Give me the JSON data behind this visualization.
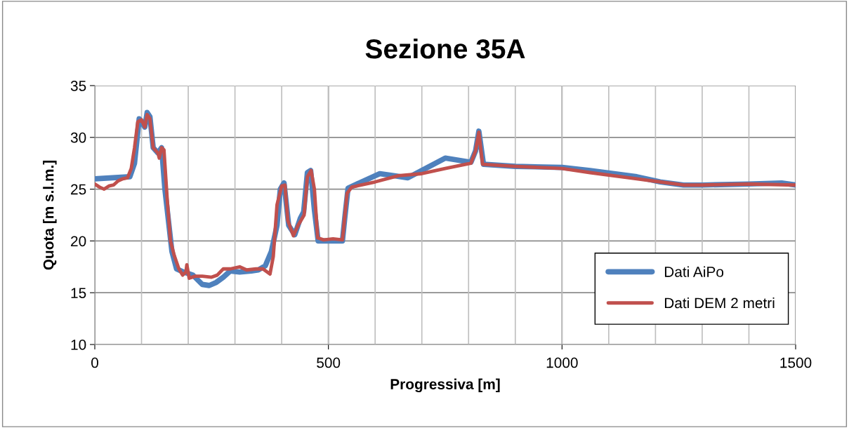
{
  "chart_data": {
    "type": "line",
    "title": "Sezione 35A",
    "xlabel": "Progressiva [m]",
    "ylabel": "Quota [m s.l.m.]",
    "xlim": [
      0,
      1500
    ],
    "xticks": [
      0,
      500,
      1000,
      1500
    ],
    "ylim": [
      10,
      35
    ],
    "yticks": [
      10,
      15,
      20,
      25,
      30,
      35
    ],
    "grid": true,
    "legend": "bottom right",
    "marker": "none",
    "line_style": "solid",
    "series": [
      {
        "name": "Dati AiPo",
        "color": "#4f81bd",
        "x": [
          0,
          75,
          85,
          95,
          107,
          112,
          118,
          125,
          135,
          143,
          150,
          165,
          175,
          190,
          210,
          230,
          245,
          260,
          275,
          290,
          310,
          335,
          350,
          365,
          378,
          390,
          397,
          405,
          415,
          428,
          440,
          447,
          455,
          462,
          470,
          478,
          490,
          500,
          530,
          535,
          542,
          610,
          670,
          750,
          805,
          815,
          822,
          832,
          900,
          1000,
          1060,
          1160,
          1210,
          1260,
          1300,
          1400,
          1470,
          1500
        ],
        "values": [
          26.0,
          26.2,
          27.5,
          31.8,
          31.0,
          32.4,
          32.0,
          29.0,
          28.5,
          29.0,
          25.0,
          19.0,
          17.3,
          17.0,
          16.7,
          15.8,
          15.7,
          16.0,
          16.5,
          17.1,
          17.0,
          17.1,
          17.2,
          17.6,
          19.0,
          21.5,
          25.0,
          25.6,
          21.5,
          20.6,
          22.2,
          22.8,
          26.6,
          26.8,
          23.0,
          20.0,
          20.0,
          20.0,
          20.0,
          22.2,
          25.1,
          26.5,
          26.1,
          28.0,
          27.6,
          28.7,
          30.6,
          27.4,
          27.2,
          27.1,
          26.8,
          26.2,
          25.7,
          25.4,
          25.4,
          25.5,
          25.6,
          25.4
        ]
      },
      {
        "name": "Dati DEM 2 metri",
        "color": "#c0504d",
        "x": [
          0,
          10,
          20,
          30,
          40,
          50,
          60,
          70,
          78,
          85,
          92,
          100,
          107,
          112,
          118,
          125,
          135,
          138,
          143,
          148,
          155,
          162,
          170,
          180,
          188,
          195,
          197,
          202,
          215,
          230,
          250,
          262,
          275,
          290,
          310,
          325,
          345,
          360,
          375,
          382,
          390,
          400,
          407,
          413,
          425,
          435,
          448,
          455,
          463,
          470,
          477,
          490,
          510,
          530,
          540,
          550,
          600,
          650,
          700,
          750,
          805,
          815,
          822,
          830,
          900,
          1000,
          1060,
          1160,
          1210,
          1260,
          1300,
          1400,
          1500
        ],
        "values": [
          25.5,
          25.2,
          25.0,
          25.3,
          25.4,
          25.8,
          26.0,
          26.1,
          27.0,
          29.0,
          31.5,
          31.7,
          31.0,
          32.2,
          31.8,
          29.0,
          28.5,
          28.0,
          29.0,
          28.8,
          24.0,
          20.0,
          18.6,
          17.3,
          16.7,
          17.0,
          17.7,
          16.4,
          16.6,
          16.6,
          16.5,
          16.7,
          17.3,
          17.3,
          17.5,
          17.2,
          17.3,
          17.3,
          16.8,
          18.5,
          23.5,
          25.3,
          25.4,
          22.0,
          20.5,
          21.5,
          22.5,
          26.2,
          26.8,
          25.0,
          20.3,
          20.1,
          20.2,
          20.1,
          24.6,
          25.2,
          25.7,
          26.3,
          26.5,
          27.0,
          27.5,
          28.7,
          30.5,
          27.4,
          27.2,
          27.0,
          26.6,
          26.0,
          25.7,
          25.4,
          25.4,
          25.5,
          25.4
        ]
      }
    ]
  }
}
